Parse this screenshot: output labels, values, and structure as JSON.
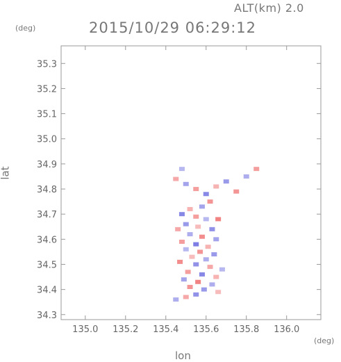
{
  "header": {
    "alt_label": "ALT(km) 2.0",
    "datetime": "2015/10/29 06:29:12"
  },
  "chart_data": {
    "type": "heatmap",
    "title": "2015/10/29 06:29:12",
    "subtitle": "ALT(km) 2.0",
    "xlabel": "lon",
    "ylabel": "lat",
    "x_unit": "(deg)",
    "y_unit": "(deg)",
    "xlim": [
      134.88,
      136.17
    ],
    "ylim": [
      34.28,
      35.37
    ],
    "x_ticks": [
      "135.0",
      "135.2",
      "135.4",
      "135.6",
      "135.8",
      "136.0"
    ],
    "y_ticks": [
      "34.3",
      "34.4",
      "34.5",
      "34.6",
      "34.7",
      "34.8",
      "34.9",
      "35.0",
      "35.1",
      "35.2",
      "35.3"
    ],
    "grid": false,
    "colors": {
      "positive": "#f07070",
      "negative": "#6a6ae0",
      "near_zero": "#e6e6f6",
      "axis": "#999999"
    },
    "cells": [
      [
        135.62,
        34.75,
        0.6
      ],
      [
        135.58,
        34.73,
        -0.4
      ],
      [
        135.52,
        34.72,
        0.3
      ],
      [
        135.48,
        34.7,
        -0.7
      ],
      [
        135.55,
        34.69,
        0.5
      ],
      [
        135.6,
        34.68,
        -0.2
      ],
      [
        135.66,
        34.68,
        0.8
      ],
      [
        135.5,
        34.66,
        -0.5
      ],
      [
        135.56,
        34.65,
        0.2
      ],
      [
        135.63,
        34.64,
        -0.6
      ],
      [
        135.46,
        34.64,
        0.4
      ],
      [
        135.52,
        34.62,
        -0.3
      ],
      [
        135.58,
        34.61,
        0.7
      ],
      [
        135.65,
        34.6,
        -0.4
      ],
      [
        135.48,
        34.59,
        0.5
      ],
      [
        135.55,
        34.58,
        -0.8
      ],
      [
        135.61,
        34.57,
        0.3
      ],
      [
        135.5,
        34.56,
        -0.2
      ],
      [
        135.57,
        34.55,
        0.6
      ],
      [
        135.64,
        34.54,
        -0.5
      ],
      [
        135.53,
        34.53,
        0.2
      ],
      [
        135.6,
        34.52,
        -0.3
      ],
      [
        135.47,
        34.51,
        0.7
      ],
      [
        135.55,
        34.5,
        -0.6
      ],
      [
        135.62,
        34.49,
        0.4
      ],
      [
        135.68,
        34.48,
        -0.2
      ],
      [
        135.51,
        34.47,
        0.5
      ],
      [
        135.58,
        34.46,
        -0.7
      ],
      [
        135.65,
        34.45,
        0.3
      ],
      [
        135.49,
        34.44,
        -0.4
      ],
      [
        135.56,
        34.43,
        0.8
      ],
      [
        135.63,
        34.42,
        -0.3
      ],
      [
        135.52,
        34.41,
        0.6
      ],
      [
        135.59,
        34.4,
        -0.5
      ],
      [
        135.66,
        34.39,
        0.2
      ],
      [
        135.55,
        34.38,
        -0.6
      ],
      [
        135.5,
        34.37,
        0.4
      ],
      [
        135.45,
        34.36,
        -0.3
      ],
      [
        135.6,
        34.78,
        -0.7
      ],
      [
        135.55,
        34.8,
        0.5
      ],
      [
        135.5,
        34.82,
        -0.4
      ],
      [
        135.65,
        34.81,
        0.3
      ],
      [
        135.7,
        34.83,
        -0.5
      ],
      [
        135.75,
        34.79,
        0.6
      ],
      [
        135.8,
        34.85,
        -0.3
      ],
      [
        135.45,
        34.84,
        0.4
      ],
      [
        135.48,
        34.88,
        -0.2
      ],
      [
        135.85,
        34.88,
        0.5
      ]
    ]
  }
}
